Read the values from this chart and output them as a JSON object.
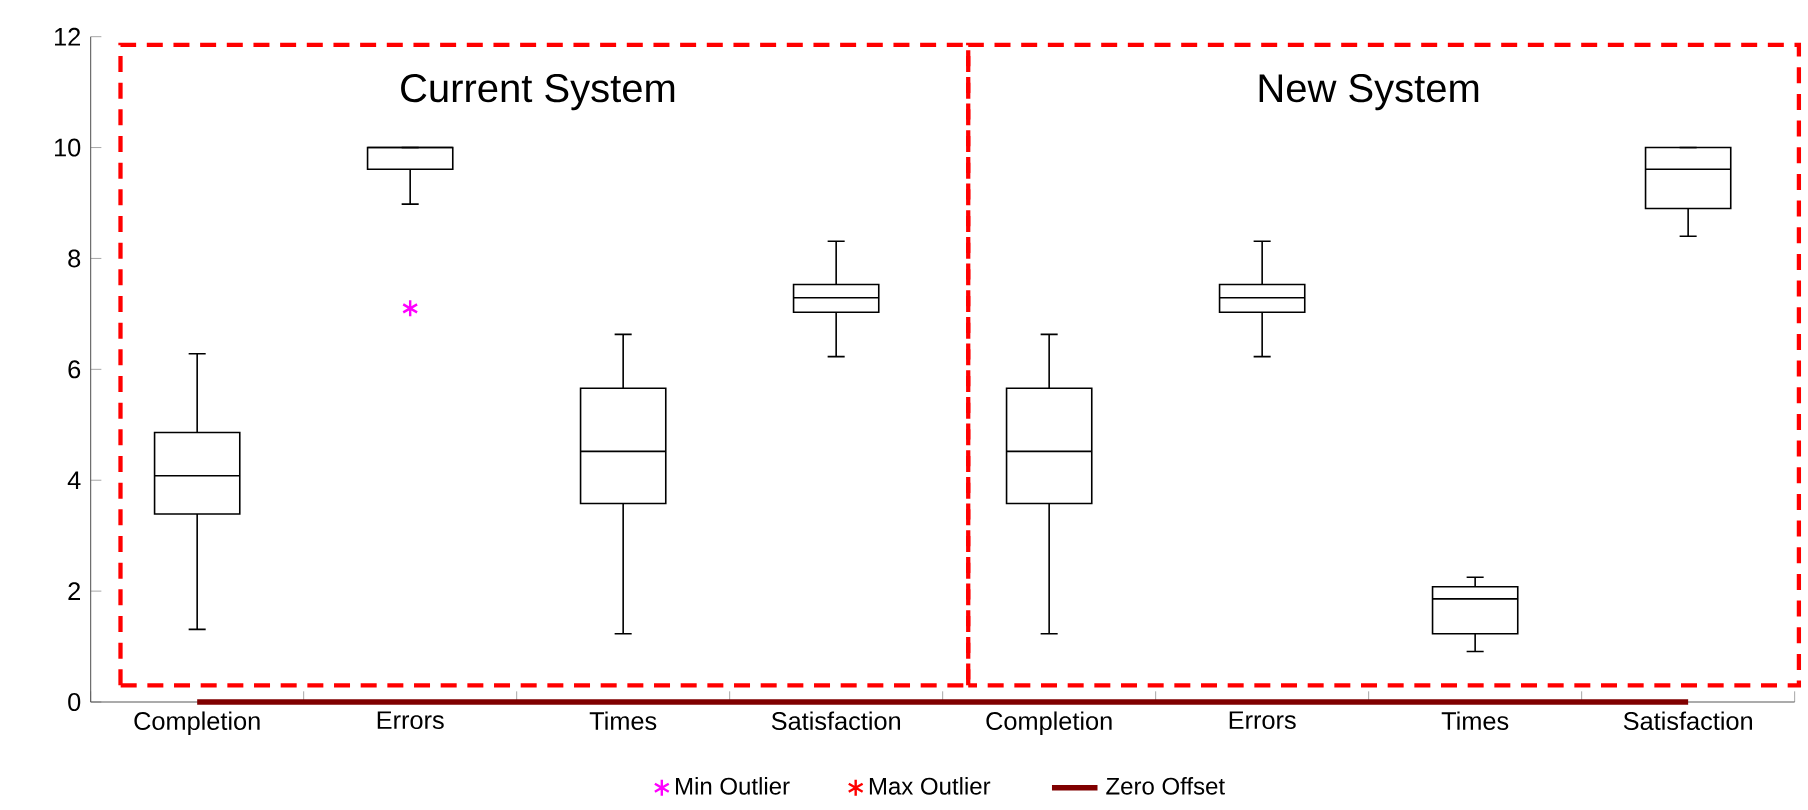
{
  "chart_data": {
    "type": "box",
    "categories": [
      "Completion",
      "Errors",
      "Times",
      "Satisfaction",
      "Completion",
      "Errors",
      "Times",
      "Satisfaction"
    ],
    "color": "#000000",
    "boxes": [
      {
        "low": 1.31,
        "q1": 3.39,
        "median": 4.08,
        "q3": 4.86,
        "high": 6.28
      },
      {
        "low": 8.98,
        "q1": 9.61,
        "median": 10.0,
        "q3": 10.0,
        "high": 10.0
      },
      {
        "low": 1.23,
        "q1": 3.58,
        "median": 4.52,
        "q3": 5.66,
        "high": 6.63
      },
      {
        "low": 6.23,
        "q1": 7.03,
        "median": 7.29,
        "q3": 7.53,
        "high": 8.31
      },
      {
        "low": 1.23,
        "q1": 3.58,
        "median": 4.52,
        "q3": 5.66,
        "high": 6.63
      },
      {
        "low": 6.23,
        "q1": 7.03,
        "median": 7.29,
        "q3": 7.53,
        "high": 8.31
      },
      {
        "low": 0.91,
        "q1": 1.23,
        "median": 1.86,
        "q3": 2.08,
        "high": 2.25
      },
      {
        "low": 8.4,
        "q1": 8.9,
        "median": 9.61,
        "q3": 10.0,
        "high": 10.0
      }
    ],
    "series": [
      {
        "name": "Min Outlier",
        "type": "scatter",
        "marker": "cross",
        "color": "#ff00ff",
        "values": [
          null,
          7.1,
          null,
          null,
          null,
          null,
          null,
          null
        ]
      },
      {
        "name": "Max Outlier",
        "type": "scatter",
        "marker": "cross",
        "color": "#ff0000",
        "values": [
          null,
          null,
          null,
          null,
          null,
          null,
          null,
          null
        ]
      },
      {
        "name": "Zero Offset",
        "type": "line",
        "marker": "none",
        "color": "#800000",
        "values": [
          0,
          0,
          0,
          0,
          0,
          0,
          0,
          0
        ]
      }
    ],
    "annotations": [
      "Current System",
      "New System"
    ],
    "ylim": [
      0,
      12
    ],
    "yticks": [
      0,
      2,
      4,
      6,
      8,
      10,
      12
    ],
    "legend": "bottom",
    "grid": false
  }
}
